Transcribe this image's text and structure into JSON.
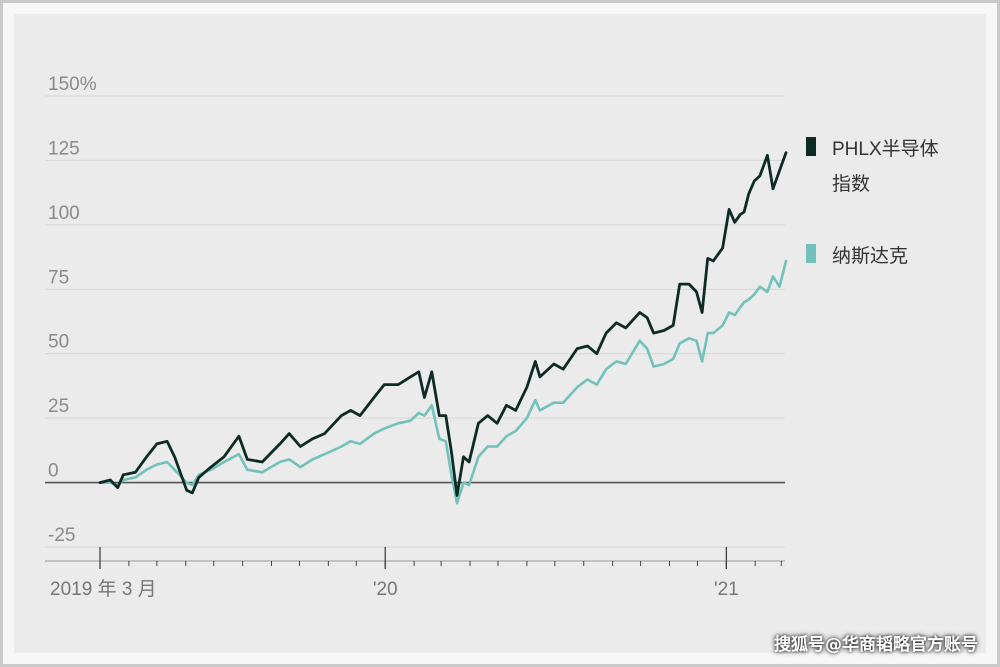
{
  "chart_data": {
    "type": "line",
    "y_unit": "%",
    "y_ticks": [
      "150%",
      "125",
      "100",
      "75",
      "50",
      "25",
      "0",
      "-25"
    ],
    "y_tick_values": [
      150,
      125,
      100,
      75,
      50,
      25,
      0,
      -25
    ],
    "ylim": [
      -25,
      150
    ],
    "x_ticks": [
      "2019 年 3 月",
      "'20",
      "'21"
    ],
    "x_tick_dates": [
      "2019-03-01",
      "2020-01-01",
      "2021-01-01"
    ],
    "xlim": [
      "2019-03-01",
      "2021-02-14"
    ],
    "grid": true,
    "legend_position": "right",
    "series": [
      {
        "name": "PHLX半导体指数",
        "color": "#0d2b24",
        "points": [
          [
            "2019-03-01",
            0
          ],
          [
            "2019-03-12",
            1
          ],
          [
            "2019-03-20",
            -2
          ],
          [
            "2019-03-26",
            3
          ],
          [
            "2019-04-08",
            4
          ],
          [
            "2019-04-20",
            10
          ],
          [
            "2019-05-01",
            15
          ],
          [
            "2019-05-12",
            16
          ],
          [
            "2019-05-20",
            10
          ],
          [
            "2019-06-02",
            -3
          ],
          [
            "2019-06-08",
            -4
          ],
          [
            "2019-06-15",
            2
          ],
          [
            "2019-06-28",
            6
          ],
          [
            "2019-07-12",
            10
          ],
          [
            "2019-07-28",
            18
          ],
          [
            "2019-08-06",
            9
          ],
          [
            "2019-08-22",
            8
          ],
          [
            "2019-09-10",
            15
          ],
          [
            "2019-09-20",
            19
          ],
          [
            "2019-10-02",
            14
          ],
          [
            "2019-10-15",
            17
          ],
          [
            "2019-10-28",
            19
          ],
          [
            "2019-11-15",
            26
          ],
          [
            "2019-11-25",
            28
          ],
          [
            "2019-12-05",
            26
          ],
          [
            "2019-12-20",
            33
          ],
          [
            "2019-12-31",
            38
          ],
          [
            "2020-01-15",
            38
          ],
          [
            "2020-01-28",
            41
          ],
          [
            "2020-02-06",
            43
          ],
          [
            "2020-02-12",
            33
          ],
          [
            "2020-02-20",
            43
          ],
          [
            "2020-02-28",
            26
          ],
          [
            "2020-03-06",
            26
          ],
          [
            "2020-03-12",
            12
          ],
          [
            "2020-03-18",
            -5
          ],
          [
            "2020-03-25",
            10
          ],
          [
            "2020-03-31",
            8
          ],
          [
            "2020-04-10",
            23
          ],
          [
            "2020-04-20",
            26
          ],
          [
            "2020-04-30",
            23
          ],
          [
            "2020-05-10",
            30
          ],
          [
            "2020-05-20",
            28
          ],
          [
            "2020-06-01",
            37
          ],
          [
            "2020-06-10",
            47
          ],
          [
            "2020-06-15",
            41
          ],
          [
            "2020-06-30",
            46
          ],
          [
            "2020-07-10",
            44
          ],
          [
            "2020-07-25",
            52
          ],
          [
            "2020-08-05",
            53
          ],
          [
            "2020-08-15",
            50
          ],
          [
            "2020-08-25",
            58
          ],
          [
            "2020-09-05",
            62
          ],
          [
            "2020-09-15",
            60
          ],
          [
            "2020-09-30",
            66
          ],
          [
            "2020-10-08",
            64
          ],
          [
            "2020-10-15",
            58
          ],
          [
            "2020-10-26",
            59
          ],
          [
            "2020-11-05",
            61
          ],
          [
            "2020-11-12",
            77
          ],
          [
            "2020-11-22",
            77
          ],
          [
            "2020-11-30",
            74
          ],
          [
            "2020-12-06",
            66
          ],
          [
            "2020-12-12",
            87
          ],
          [
            "2020-12-18",
            86
          ],
          [
            "2020-12-28",
            91
          ],
          [
            "2021-01-04",
            106
          ],
          [
            "2021-01-10",
            101
          ],
          [
            "2021-01-16",
            104
          ],
          [
            "2021-01-20",
            105
          ],
          [
            "2021-01-25",
            112
          ],
          [
            "2021-01-31",
            117
          ],
          [
            "2021-02-06",
            119
          ],
          [
            "2021-02-14",
            127
          ],
          [
            "2021-02-20",
            114
          ],
          [
            "2021-02-27",
            121
          ],
          [
            "2021-03-06",
            128
          ]
        ]
      },
      {
        "name": "纳斯达克",
        "color": "#72c1bb",
        "points": [
          [
            "2019-03-01",
            0
          ],
          [
            "2019-03-12",
            0
          ],
          [
            "2019-03-20",
            -1
          ],
          [
            "2019-03-26",
            1
          ],
          [
            "2019-04-08",
            2
          ],
          [
            "2019-04-20",
            5
          ],
          [
            "2019-05-01",
            7
          ],
          [
            "2019-05-12",
            8
          ],
          [
            "2019-05-20",
            5
          ],
          [
            "2019-06-02",
            0
          ],
          [
            "2019-06-08",
            -1
          ],
          [
            "2019-06-15",
            3
          ],
          [
            "2019-06-28",
            5
          ],
          [
            "2019-07-12",
            8
          ],
          [
            "2019-07-28",
            11
          ],
          [
            "2019-08-06",
            5
          ],
          [
            "2019-08-22",
            4
          ],
          [
            "2019-09-10",
            8
          ],
          [
            "2019-09-20",
            9
          ],
          [
            "2019-10-02",
            6
          ],
          [
            "2019-10-15",
            9
          ],
          [
            "2019-10-28",
            11
          ],
          [
            "2019-11-15",
            14
          ],
          [
            "2019-11-25",
            16
          ],
          [
            "2019-12-05",
            15
          ],
          [
            "2019-12-20",
            19
          ],
          [
            "2019-12-31",
            21
          ],
          [
            "2020-01-15",
            23
          ],
          [
            "2020-01-28",
            24
          ],
          [
            "2020-02-06",
            27
          ],
          [
            "2020-02-12",
            26
          ],
          [
            "2020-02-20",
            30
          ],
          [
            "2020-02-28",
            17
          ],
          [
            "2020-03-06",
            16
          ],
          [
            "2020-03-12",
            3
          ],
          [
            "2020-03-18",
            -8
          ],
          [
            "2020-03-25",
            0
          ],
          [
            "2020-03-31",
            -1
          ],
          [
            "2020-04-10",
            10
          ],
          [
            "2020-04-20",
            14
          ],
          [
            "2020-04-30",
            14
          ],
          [
            "2020-05-10",
            18
          ],
          [
            "2020-05-20",
            20
          ],
          [
            "2020-06-01",
            25
          ],
          [
            "2020-06-10",
            32
          ],
          [
            "2020-06-15",
            28
          ],
          [
            "2020-06-30",
            31
          ],
          [
            "2020-07-10",
            31
          ],
          [
            "2020-07-25",
            37
          ],
          [
            "2020-08-05",
            40
          ],
          [
            "2020-08-15",
            38
          ],
          [
            "2020-08-25",
            44
          ],
          [
            "2020-09-05",
            47
          ],
          [
            "2020-09-15",
            46
          ],
          [
            "2020-09-30",
            55
          ],
          [
            "2020-10-08",
            52
          ],
          [
            "2020-10-15",
            45
          ],
          [
            "2020-10-26",
            46
          ],
          [
            "2020-11-05",
            48
          ],
          [
            "2020-11-12",
            54
          ],
          [
            "2020-11-22",
            56
          ],
          [
            "2020-11-30",
            55
          ],
          [
            "2020-12-06",
            47
          ],
          [
            "2020-12-12",
            58
          ],
          [
            "2020-12-18",
            58
          ],
          [
            "2020-12-28",
            61
          ],
          [
            "2021-01-04",
            66
          ],
          [
            "2021-01-10",
            65
          ],
          [
            "2021-01-16",
            68
          ],
          [
            "2021-01-20",
            70
          ],
          [
            "2021-01-25",
            71
          ],
          [
            "2021-01-31",
            73
          ],
          [
            "2021-02-06",
            76
          ],
          [
            "2021-02-14",
            74
          ],
          [
            "2021-02-20",
            80
          ],
          [
            "2021-02-27",
            76
          ],
          [
            "2021-03-06",
            86
          ]
        ]
      }
    ]
  },
  "legend": {
    "item1_line1": "PHLX半导体",
    "item1_line2": "指数",
    "item2": "纳斯达克"
  },
  "watermark": "搜狐号@华商韬略官方账号"
}
